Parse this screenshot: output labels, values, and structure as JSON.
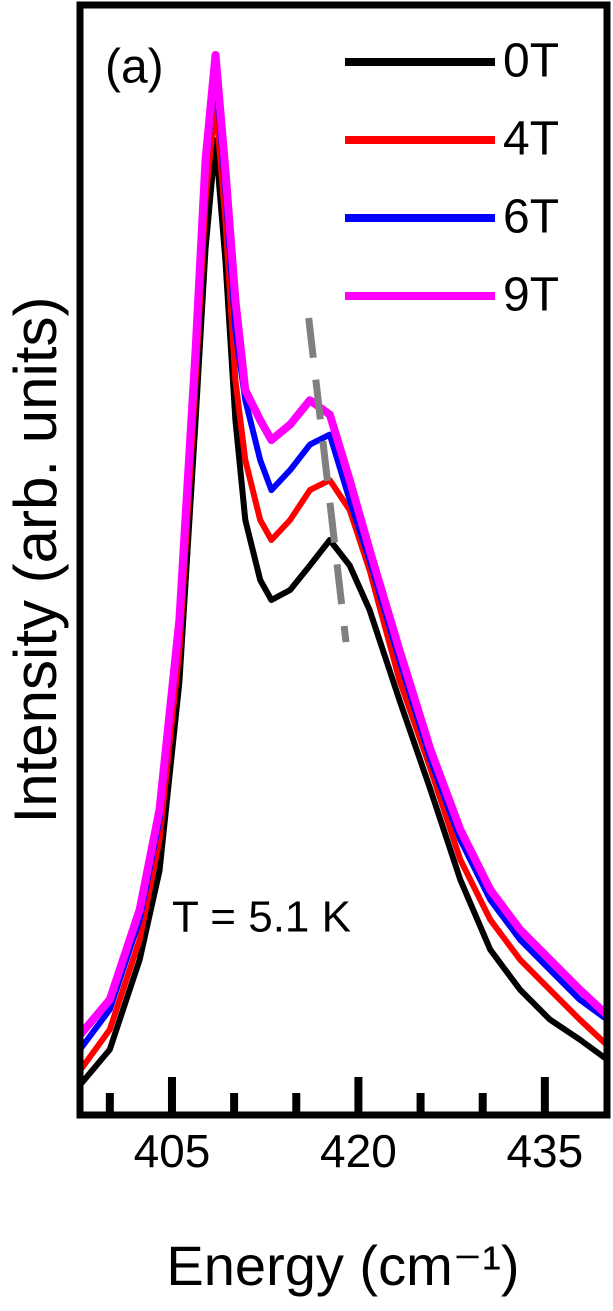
{
  "chart_data": {
    "type": "line",
    "x_label": "Energy (cm⁻¹)",
    "y_label": "Intensity (arb. units)",
    "panel_label": "(a)",
    "annotation": "T = 5.1 K",
    "x": [
      397.6,
      400.0,
      402.4,
      404.0,
      405.6,
      406.9,
      407.7,
      408.5,
      409.3,
      410.1,
      410.9,
      412.1,
      413.0,
      414.5,
      416.1,
      417.7,
      419.3,
      420.9,
      423.3,
      425.8,
      428.2,
      430.6,
      433.0,
      435.4,
      437.8,
      440.0
    ],
    "series": [
      {
        "name": "0T",
        "color": "#000000",
        "values": [
          2.7,
          5.9,
          14,
          22,
          39,
          62.6,
          78,
          87.8,
          77,
          62.6,
          53.6,
          48.2,
          46.4,
          47.3,
          49.5,
          51.8,
          49.5,
          45.5,
          37.4,
          29.3,
          21.2,
          14.9,
          11.3,
          8.6,
          6.8,
          5
        ]
      },
      {
        "name": "4T",
        "color": "#ff0000",
        "values": [
          4,
          7.7,
          15.8,
          24.8,
          41.9,
          66.2,
          82.4,
          91.4,
          80.6,
          66.2,
          59,
          53.6,
          51.8,
          53.6,
          56.3,
          57.2,
          54.5,
          49.1,
          39.2,
          31.2,
          23,
          17.6,
          14,
          11.3,
          8.6,
          6.3
        ]
      },
      {
        "name": "6T",
        "color": "#0000ff",
        "values": [
          5.9,
          9.5,
          17.6,
          26.6,
          43.7,
          68,
          85.1,
          94.1,
          83.3,
          70.7,
          64.4,
          59,
          56.3,
          58.1,
          60.4,
          61.3,
          55.4,
          50,
          41,
          32,
          24.8,
          19.4,
          15.8,
          13.1,
          10.4,
          8.6
        ]
      },
      {
        "name": "9T",
        "color": "#ff00ff",
        "values": [
          7.2,
          10.4,
          18.5,
          27.5,
          44.6,
          68.9,
          86,
          95.5,
          85.1,
          73.4,
          65.3,
          62.6,
          60.8,
          62.2,
          64.4,
          63.1,
          57.2,
          50.9,
          41.9,
          32.9,
          25.7,
          20.3,
          16.7,
          14,
          11.3,
          9
        ]
      }
    ],
    "guide_line": {
      "x": [
        416.0,
        419.0
      ],
      "y": [
        71.8,
        42.6
      ],
      "color": "#808080",
      "dashed": true
    },
    "xlim": [
      397.6,
      440
    ],
    "ylim": [
      0,
      100
    ],
    "xticks": [
      405,
      420,
      435
    ],
    "xminorticks": [
      400,
      410,
      415,
      425,
      430
    ],
    "legend": "upper right"
  }
}
